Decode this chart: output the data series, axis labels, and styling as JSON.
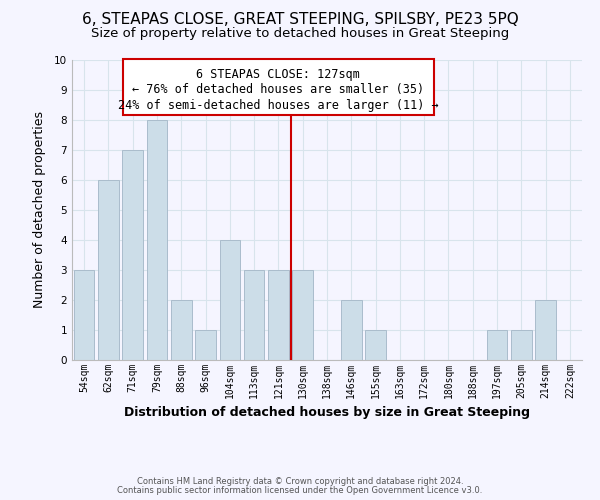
{
  "title": "6, STEAPAS CLOSE, GREAT STEEPING, SPILSBY, PE23 5PQ",
  "subtitle": "Size of property relative to detached houses in Great Steeping",
  "xlabel": "Distribution of detached houses by size in Great Steeping",
  "ylabel": "Number of detached properties",
  "footer_line1": "Contains HM Land Registry data © Crown copyright and database right 2024.",
  "footer_line2": "Contains public sector information licensed under the Open Government Licence v3.0.",
  "bar_labels": [
    "54sqm",
    "62sqm",
    "71sqm",
    "79sqm",
    "88sqm",
    "96sqm",
    "104sqm",
    "113sqm",
    "121sqm",
    "130sqm",
    "138sqm",
    "146sqm",
    "155sqm",
    "163sqm",
    "172sqm",
    "180sqm",
    "188sqm",
    "197sqm",
    "205sqm",
    "214sqm",
    "222sqm"
  ],
  "bar_values": [
    3,
    6,
    7,
    8,
    2,
    1,
    4,
    3,
    3,
    3,
    0,
    2,
    1,
    0,
    0,
    0,
    0,
    1,
    1,
    2,
    0
  ],
  "bar_color": "#ccdde8",
  "bar_edge_color": "#aabccc",
  "grid_color": "#d8e4ec",
  "reference_line_x": 8.5,
  "reference_line_color": "#cc0000",
  "annotation_line1": "6 STEAPAS CLOSE: 127sqm",
  "annotation_line2": "← 76% of detached houses are smaller (35)",
  "annotation_line3": "24% of semi-detached houses are larger (11) →",
  "ylim": [
    0,
    10
  ],
  "yticks": [
    0,
    1,
    2,
    3,
    4,
    5,
    6,
    7,
    8,
    9,
    10
  ],
  "bg_color": "#f5f5ff",
  "title_fontsize": 11,
  "subtitle_fontsize": 9.5,
  "xlabel_fontsize": 9,
  "ylabel_fontsize": 9,
  "tick_fontsize": 7,
  "annotation_fontsize": 8.5
}
